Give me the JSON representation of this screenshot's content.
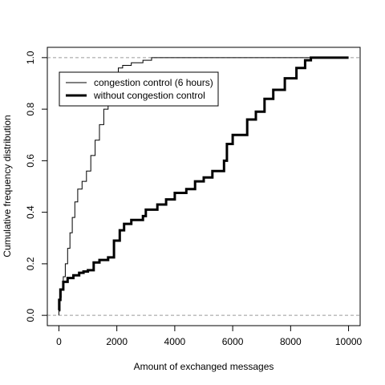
{
  "chart_data": {
    "type": "line",
    "title": "",
    "xlabel": "Amount of exchanged messages",
    "ylabel": "Cumulative frequency distribution",
    "xlim": [
      -400,
      10400
    ],
    "ylim": [
      -0.04,
      1.04
    ],
    "x_ticks": [
      0,
      2000,
      4000,
      6000,
      8000,
      10000
    ],
    "x_tick_labels": [
      "0",
      "2000",
      "4000",
      "6000",
      "8000",
      "10000"
    ],
    "y_ticks": [
      0.0,
      0.2,
      0.4,
      0.6,
      0.8,
      1.0
    ],
    "y_tick_labels": [
      "0.0",
      "0.2",
      "0.4",
      "0.6",
      "0.8",
      "1.0"
    ],
    "reference_lines": [
      0,
      1
    ],
    "grid": false,
    "legend_position": "top-left",
    "series": [
      {
        "name": "congestion control (6 hours)",
        "line_width": "thin",
        "color": "#000000",
        "points": [
          [
            0,
            0.0
          ],
          [
            0,
            0.02
          ],
          [
            40,
            0.07
          ],
          [
            80,
            0.1
          ],
          [
            150,
            0.15
          ],
          [
            220,
            0.2
          ],
          [
            300,
            0.26
          ],
          [
            380,
            0.32
          ],
          [
            460,
            0.38
          ],
          [
            550,
            0.44
          ],
          [
            650,
            0.49
          ],
          [
            800,
            0.52
          ],
          [
            950,
            0.56
          ],
          [
            1100,
            0.62
          ],
          [
            1250,
            0.68
          ],
          [
            1400,
            0.74
          ],
          [
            1550,
            0.8
          ],
          [
            1700,
            0.85
          ],
          [
            1800,
            0.88
          ],
          [
            1900,
            0.92
          ],
          [
            2050,
            0.96
          ],
          [
            2200,
            0.97
          ],
          [
            2500,
            0.98
          ],
          [
            2900,
            0.99
          ],
          [
            3200,
            1.0
          ],
          [
            8800,
            1.0
          ]
        ]
      },
      {
        "name": "without congestion control",
        "line_width": "thick",
        "color": "#000000",
        "points": [
          [
            0,
            0.02
          ],
          [
            10,
            0.06
          ],
          [
            50,
            0.1
          ],
          [
            150,
            0.13
          ],
          [
            300,
            0.145
          ],
          [
            500,
            0.155
          ],
          [
            700,
            0.165
          ],
          [
            850,
            0.17
          ],
          [
            1000,
            0.175
          ],
          [
            1200,
            0.205
          ],
          [
            1400,
            0.215
          ],
          [
            1700,
            0.225
          ],
          [
            1900,
            0.29
          ],
          [
            2100,
            0.33
          ],
          [
            2250,
            0.355
          ],
          [
            2500,
            0.37
          ],
          [
            2900,
            0.385
          ],
          [
            3000,
            0.41
          ],
          [
            3400,
            0.43
          ],
          [
            3700,
            0.45
          ],
          [
            4000,
            0.475
          ],
          [
            4400,
            0.49
          ],
          [
            4700,
            0.52
          ],
          [
            5000,
            0.535
          ],
          [
            5300,
            0.56
          ],
          [
            5700,
            0.6
          ],
          [
            5800,
            0.665
          ],
          [
            6000,
            0.7
          ],
          [
            6500,
            0.76
          ],
          [
            6800,
            0.79
          ],
          [
            7100,
            0.84
          ],
          [
            7400,
            0.875
          ],
          [
            7800,
            0.92
          ],
          [
            8200,
            0.96
          ],
          [
            8500,
            0.99
          ],
          [
            8700,
            1.0
          ],
          [
            10000,
            1.0
          ]
        ]
      }
    ]
  }
}
